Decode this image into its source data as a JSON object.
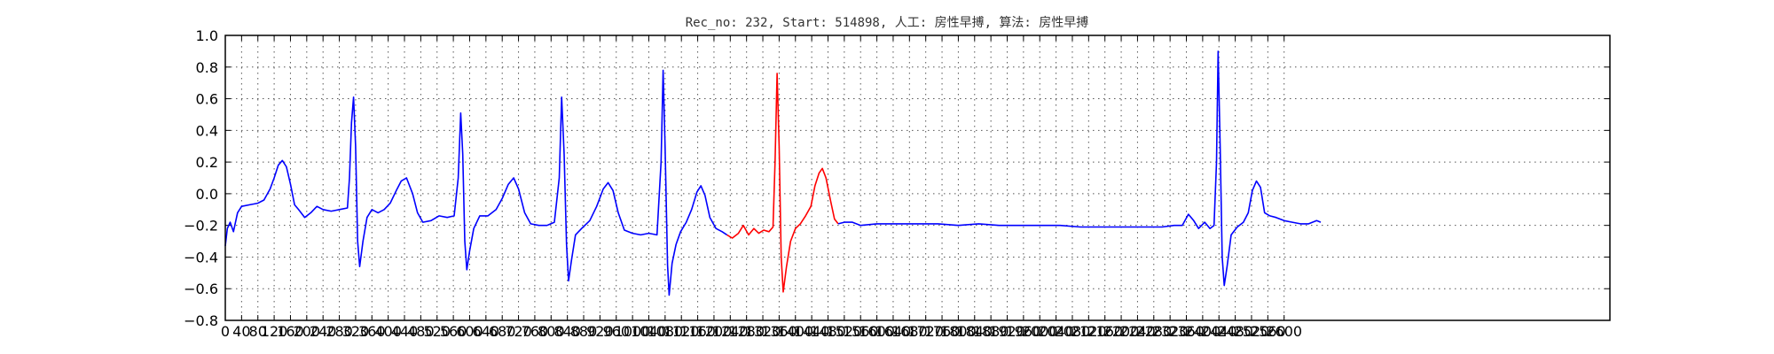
{
  "chart_data": {
    "type": "line",
    "title": "Rec_no: 232, Start: 514898, 人工: 房性早搏, 算法: 房性早搏",
    "xlabel": "",
    "ylabel": "",
    "xlim": [
      0,
      3400
    ],
    "ylim": [
      -0.8,
      1.0
    ],
    "grid": true,
    "yticks": [
      1.0,
      0.8,
      0.6,
      0.4,
      0.2,
      0.0,
      -0.2,
      -0.4,
      -0.6,
      -0.8
    ],
    "ytick_labels": [
      "1.0",
      "0.8",
      "0.6",
      "0.4",
      "0.2",
      "0.0",
      "−0.2",
      "−0.4",
      "−0.6",
      "−0.8"
    ],
    "xtick_labels": [
      "0",
      "40",
      "80",
      "120",
      "160",
      "200",
      "240",
      "280",
      "320",
      "360",
      "400",
      "440",
      "480",
      "520",
      "560",
      "600",
      "640",
      "680",
      "720",
      "760",
      "800",
      "840",
      "880",
      "920",
      "960",
      "1000",
      "1040",
      "1080",
      "1120",
      "1160",
      "1200",
      "1240",
      "1280",
      "1320",
      "1360",
      "1400",
      "1440",
      "1480",
      "1520",
      "1560",
      "1600",
      "1640",
      "1680",
      "1720",
      "1760",
      "1800",
      "1840",
      "1880",
      "1920",
      "1960",
      "2000",
      "2040",
      "2080",
      "2120",
      "2160",
      "2200",
      "2240",
      "2280",
      "2320",
      "2360",
      "2400",
      "2440",
      "2480",
      "2520",
      "2560",
      "2600"
    ],
    "xtick_step": 40,
    "series": [
      {
        "color": "#0000ff",
        "points": [
          [
            0,
            -0.33
          ],
          [
            5,
            -0.22
          ],
          [
            12,
            -0.18
          ],
          [
            20,
            -0.24
          ],
          [
            30,
            -0.12
          ],
          [
            40,
            -0.08
          ],
          [
            60,
            -0.07
          ],
          [
            80,
            -0.06
          ],
          [
            95,
            -0.04
          ],
          [
            110,
            0.03
          ],
          [
            120,
            0.1
          ],
          [
            130,
            0.18
          ],
          [
            140,
            0.21
          ],
          [
            150,
            0.17
          ],
          [
            160,
            0.06
          ],
          [
            170,
            -0.07
          ],
          [
            180,
            -0.1
          ],
          [
            195,
            -0.15
          ],
          [
            210,
            -0.12
          ],
          [
            225,
            -0.08
          ],
          [
            240,
            -0.1
          ],
          [
            260,
            -0.11
          ],
          [
            280,
            -0.1
          ],
          [
            300,
            -0.09
          ],
          [
            305,
            0.1
          ],
          [
            310,
            0.45
          ],
          [
            315,
            0.61
          ],
          [
            320,
            0.3
          ],
          [
            325,
            -0.3
          ],
          [
            330,
            -0.46
          ],
          [
            338,
            -0.3
          ],
          [
            348,
            -0.15
          ],
          [
            360,
            -0.1
          ],
          [
            375,
            -0.12
          ],
          [
            390,
            -0.1
          ],
          [
            405,
            -0.06
          ],
          [
            420,
            0.02
          ],
          [
            432,
            0.08
          ],
          [
            445,
            0.1
          ],
          [
            460,
            0.0
          ],
          [
            472,
            -0.12
          ],
          [
            485,
            -0.18
          ],
          [
            505,
            -0.17
          ],
          [
            525,
            -0.14
          ],
          [
            545,
            -0.15
          ],
          [
            562,
            -0.14
          ],
          [
            572,
            0.1
          ],
          [
            578,
            0.51
          ],
          [
            583,
            0.25
          ],
          [
            588,
            -0.3
          ],
          [
            593,
            -0.48
          ],
          [
            600,
            -0.36
          ],
          [
            610,
            -0.22
          ],
          [
            625,
            -0.14
          ],
          [
            645,
            -0.14
          ],
          [
            665,
            -0.1
          ],
          [
            680,
            -0.03
          ],
          [
            695,
            0.06
          ],
          [
            708,
            0.1
          ],
          [
            720,
            0.03
          ],
          [
            735,
            -0.12
          ],
          [
            750,
            -0.19
          ],
          [
            770,
            -0.2
          ],
          [
            790,
            -0.2
          ],
          [
            808,
            -0.18
          ],
          [
            820,
            0.1
          ],
          [
            826,
            0.61
          ],
          [
            832,
            0.25
          ],
          [
            838,
            -0.32
          ],
          [
            843,
            -0.55
          ],
          [
            850,
            -0.42
          ],
          [
            860,
            -0.26
          ],
          [
            875,
            -0.22
          ],
          [
            895,
            -0.17
          ],
          [
            912,
            -0.08
          ],
          [
            928,
            0.03
          ],
          [
            940,
            0.07
          ],
          [
            952,
            0.02
          ],
          [
            965,
            -0.12
          ],
          [
            980,
            -0.23
          ],
          [
            1000,
            -0.25
          ],
          [
            1020,
            -0.26
          ],
          [
            1040,
            -0.25
          ],
          [
            1060,
            -0.26
          ],
          [
            1070,
            0.2
          ],
          [
            1075,
            0.78
          ],
          [
            1080,
            0.3
          ],
          [
            1086,
            -0.45
          ],
          [
            1090,
            -0.64
          ],
          [
            1097,
            -0.44
          ],
          [
            1107,
            -0.32
          ],
          [
            1118,
            -0.24
          ],
          [
            1132,
            -0.18
          ],
          [
            1145,
            -0.1
          ],
          [
            1158,
            0.01
          ],
          [
            1168,
            0.05
          ],
          [
            1178,
            -0.01
          ],
          [
            1190,
            -0.15
          ],
          [
            1205,
            -0.22
          ],
          [
            1220,
            -0.24
          ],
          [
            1232,
            -0.26
          ]
        ]
      },
      {
        "color": "#ff0000",
        "points": [
          [
            1232,
            -0.26
          ],
          [
            1245,
            -0.28
          ],
          [
            1260,
            -0.25
          ],
          [
            1272,
            -0.2
          ],
          [
            1285,
            -0.26
          ],
          [
            1298,
            -0.22
          ],
          [
            1310,
            -0.25
          ],
          [
            1322,
            -0.23
          ],
          [
            1335,
            -0.24
          ],
          [
            1345,
            -0.21
          ],
          [
            1350,
            0.2
          ],
          [
            1355,
            0.76
          ],
          [
            1360,
            0.3
          ],
          [
            1365,
            -0.4
          ],
          [
            1370,
            -0.62
          ],
          [
            1378,
            -0.46
          ],
          [
            1388,
            -0.3
          ],
          [
            1400,
            -0.22
          ],
          [
            1412,
            -0.19
          ],
          [
            1425,
            -0.14
          ],
          [
            1438,
            -0.08
          ],
          [
            1448,
            0.05
          ],
          [
            1458,
            0.13
          ],
          [
            1466,
            0.16
          ],
          [
            1475,
            0.1
          ],
          [
            1486,
            -0.04
          ],
          [
            1496,
            -0.16
          ],
          [
            1505,
            -0.19
          ]
        ]
      },
      {
        "color": "#0000ff",
        "points": [
          [
            1505,
            -0.19
          ],
          [
            1520,
            -0.18
          ],
          [
            1540,
            -0.18
          ],
          [
            1560,
            -0.2
          ],
          [
            1600,
            -0.19
          ],
          [
            1650,
            -0.19
          ],
          [
            1700,
            -0.19
          ],
          [
            1750,
            -0.19
          ],
          [
            1800,
            -0.2
          ],
          [
            1850,
            -0.19
          ],
          [
            1900,
            -0.2
          ],
          [
            1950,
            -0.2
          ],
          [
            2000,
            -0.2
          ],
          [
            2050,
            -0.2
          ],
          [
            2100,
            -0.21
          ],
          [
            2150,
            -0.21
          ],
          [
            2200,
            -0.21
          ],
          [
            2250,
            -0.21
          ],
          [
            2300,
            -0.21
          ],
          [
            2330,
            -0.2
          ],
          [
            2350,
            -0.2
          ],
          [
            2365,
            -0.13
          ],
          [
            2378,
            -0.17
          ],
          [
            2390,
            -0.22
          ],
          [
            2405,
            -0.18
          ],
          [
            2418,
            -0.22
          ],
          [
            2428,
            -0.2
          ],
          [
            2434,
            0.2
          ],
          [
            2438,
            0.9
          ],
          [
            2443,
            0.3
          ],
          [
            2448,
            -0.4
          ],
          [
            2453,
            -0.58
          ],
          [
            2460,
            -0.46
          ],
          [
            2470,
            -0.26
          ],
          [
            2485,
            -0.21
          ],
          [
            2500,
            -0.18
          ],
          [
            2512,
            -0.12
          ],
          [
            2522,
            0.02
          ],
          [
            2532,
            0.08
          ],
          [
            2542,
            0.04
          ],
          [
            2552,
            -0.12
          ],
          [
            2565,
            -0.14
          ],
          [
            2580,
            -0.15
          ],
          [
            2600,
            -0.17
          ],
          [
            2620,
            -0.18
          ],
          [
            2640,
            -0.19
          ],
          [
            2660,
            -0.19
          ],
          [
            2680,
            -0.17
          ],
          [
            2690,
            -0.18
          ]
        ]
      }
    ]
  }
}
